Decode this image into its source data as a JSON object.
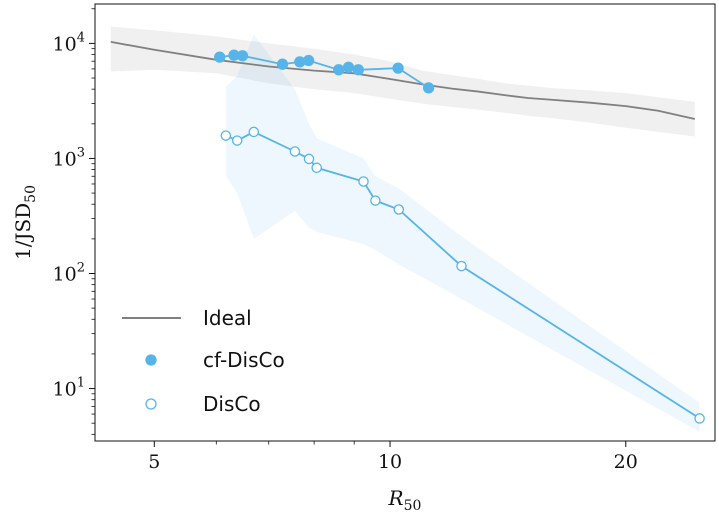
{
  "chart_data": {
    "type": "line",
    "title": "",
    "xlabel": "R_50",
    "ylabel": "1/JSD_50",
    "xscale": "log",
    "yscale": "log",
    "xlim": [
      4.2,
      26
    ],
    "ylim": [
      3.5,
      22000
    ],
    "xticks": [
      5,
      10,
      20
    ],
    "xtick_labels": [
      "5",
      "10",
      "20"
    ],
    "yticks": [
      10,
      100,
      1000,
      10000
    ],
    "ytick_labels": [
      {
        "base": "10",
        "exp": "1"
      },
      {
        "base": "10",
        "exp": "2"
      },
      {
        "base": "10",
        "exp": "3"
      },
      {
        "base": "10",
        "exp": "4"
      }
    ],
    "legend_position": "lower-left",
    "grid": false,
    "series": [
      {
        "name": "Ideal",
        "color": "#808080",
        "marker": "none",
        "x": [
          4.4,
          5.0,
          6.0,
          7.0,
          8.0,
          9.0,
          10.0,
          11.0,
          12.0,
          13.0,
          14.0,
          15.0,
          16.0,
          18.0,
          20.0,
          22.0,
          24.5
        ],
        "y": [
          10300,
          8800,
          7200,
          6300,
          5800,
          5500,
          4900,
          4400,
          4050,
          3800,
          3550,
          3350,
          3250,
          3050,
          2850,
          2600,
          2200
        ],
        "band_upper": [
          14000,
          13000,
          11500,
          10000,
          9000,
          8000,
          7000,
          5800,
          5300,
          4900,
          4500,
          4300,
          4100,
          3900,
          3700,
          3400,
          3100
        ],
        "band_lower": [
          5700,
          5900,
          5500,
          4500,
          4000,
          3700,
          3300,
          3000,
          2800,
          2650,
          2500,
          2350,
          2250,
          2050,
          1850,
          1700,
          1550
        ]
      },
      {
        "name": "cf-DisCo",
        "color": "#56b4e9",
        "marker": "filled-circle",
        "x": [
          6.06,
          6.32,
          6.48,
          7.29,
          7.67,
          7.87,
          8.6,
          8.85,
          9.11,
          10.24,
          11.2
        ],
        "y": [
          7600,
          7900,
          7800,
          6600,
          6900,
          7100,
          5900,
          6200,
          5900,
          6100,
          4100
        ]
      },
      {
        "name": "DisCo",
        "color": "#56b4e9",
        "marker": "open-circle",
        "x": [
          6.17,
          6.38,
          6.7,
          7.56,
          7.88,
          8.06,
          9.25,
          9.58,
          10.26,
          12.34,
          24.85
        ],
        "y": [
          1580,
          1430,
          1700,
          1150,
          990,
          830,
          630,
          430,
          360,
          116,
          5.5
        ],
        "band_upper": [
          4200,
          5200,
          12000,
          4000,
          2000,
          1500,
          1000,
          700,
          550,
          210,
          7.5
        ],
        "band_lower": [
          700,
          500,
          200,
          350,
          250,
          230,
          180,
          160,
          120,
          60,
          4.2
        ]
      }
    ]
  }
}
